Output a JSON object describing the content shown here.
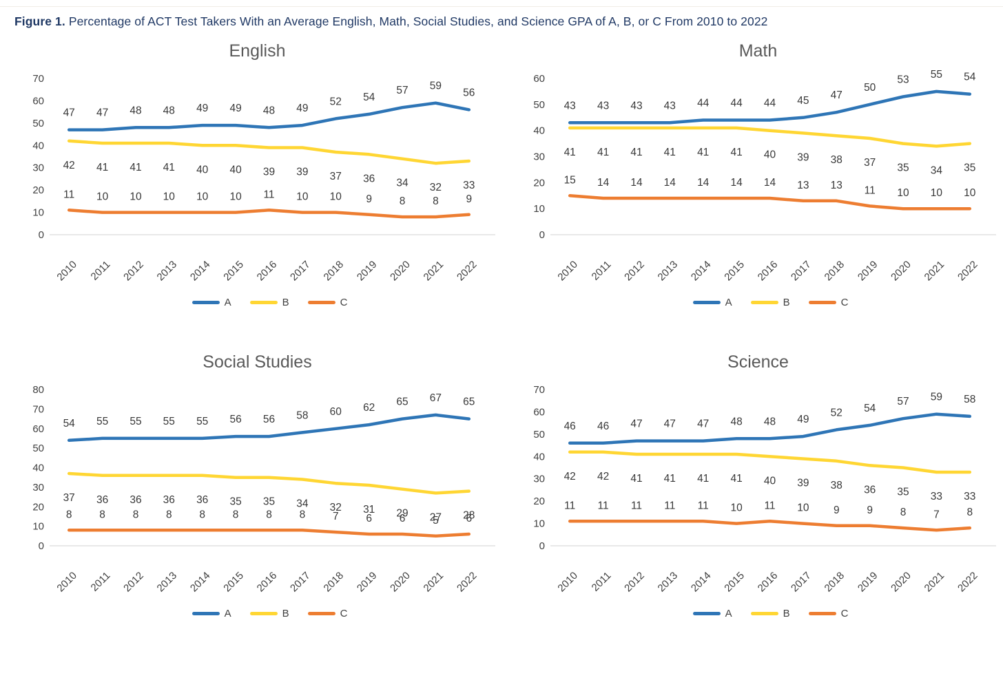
{
  "page": {
    "figure_label": "Figure 1.",
    "figure_caption": "Percentage of ACT Test Takers With an Average English, Math, Social Studies, and Science GPA of A, B, or C From 2010 to 2022"
  },
  "colors": {
    "series_A": "#2E75B6",
    "series_B": "#FFD633",
    "series_C": "#ED7D31",
    "axis_line": "#D9D9D9",
    "tick_text": "#404040",
    "chart_title_text": "#595959",
    "figure_title_text": "#1F3864"
  },
  "chart_data": [
    {
      "type": "line",
      "title": "English",
      "x": [
        "2010",
        "2011",
        "2012",
        "2013",
        "2014",
        "2015",
        "2016",
        "2017",
        "2018",
        "2019",
        "2020",
        "2021",
        "2022"
      ],
      "ylim": [
        0,
        70
      ],
      "ytick_step": 10,
      "grid": false,
      "legend_position": "bottom",
      "data_labels": true,
      "series": [
        {
          "name": "A",
          "color": "#2E75B6",
          "label_position": "above",
          "values": [
            47,
            47,
            48,
            48,
            49,
            49,
            48,
            49,
            52,
            54,
            57,
            59,
            56
          ]
        },
        {
          "name": "B",
          "color": "#FFD633",
          "label_position": "below",
          "values": [
            42,
            41,
            41,
            41,
            40,
            40,
            39,
            39,
            37,
            36,
            34,
            32,
            33
          ]
        },
        {
          "name": "C",
          "color": "#ED7D31",
          "label_position": "above",
          "values": [
            11,
            10,
            10,
            10,
            10,
            10,
            11,
            10,
            10,
            9,
            8,
            8,
            9
          ]
        }
      ]
    },
    {
      "type": "line",
      "title": "Math",
      "x": [
        "2010",
        "2011",
        "2012",
        "2013",
        "2014",
        "2015",
        "2016",
        "2017",
        "2018",
        "2019",
        "2020",
        "2021",
        "2022"
      ],
      "ylim": [
        0,
        60
      ],
      "ytick_step": 10,
      "grid": false,
      "legend_position": "bottom",
      "data_labels": true,
      "series": [
        {
          "name": "A",
          "color": "#2E75B6",
          "label_position": "above",
          "values": [
            43,
            43,
            43,
            43,
            44,
            44,
            44,
            45,
            47,
            50,
            53,
            55,
            54
          ]
        },
        {
          "name": "B",
          "color": "#FFD633",
          "label_position": "below",
          "values": [
            41,
            41,
            41,
            41,
            41,
            41,
            40,
            39,
            38,
            37,
            35,
            34,
            35
          ]
        },
        {
          "name": "C",
          "color": "#ED7D31",
          "label_position": "above",
          "values": [
            15,
            14,
            14,
            14,
            14,
            14,
            14,
            13,
            13,
            11,
            10,
            10,
            10
          ]
        }
      ]
    },
    {
      "type": "line",
      "title": "Social Studies",
      "x": [
        "2010",
        "2011",
        "2012",
        "2013",
        "2014",
        "2015",
        "2016",
        "2017",
        "2018",
        "2019",
        "2020",
        "2021",
        "2022"
      ],
      "ylim": [
        0,
        80
      ],
      "ytick_step": 10,
      "grid": false,
      "legend_position": "bottom",
      "data_labels": true,
      "series": [
        {
          "name": "A",
          "color": "#2E75B6",
          "label_position": "above",
          "values": [
            54,
            55,
            55,
            55,
            55,
            56,
            56,
            58,
            60,
            62,
            65,
            67,
            65
          ]
        },
        {
          "name": "B",
          "color": "#FFD633",
          "label_position": "below",
          "values": [
            37,
            36,
            36,
            36,
            36,
            35,
            35,
            34,
            32,
            31,
            29,
            27,
            28
          ]
        },
        {
          "name": "C",
          "color": "#ED7D31",
          "label_position": "above",
          "values": [
            8,
            8,
            8,
            8,
            8,
            8,
            8,
            8,
            7,
            6,
            6,
            5,
            6
          ]
        }
      ]
    },
    {
      "type": "line",
      "title": "Science",
      "x": [
        "2010",
        "2011",
        "2012",
        "2013",
        "2014",
        "2015",
        "2016",
        "2017",
        "2018",
        "2019",
        "2020",
        "2021",
        "2022"
      ],
      "ylim": [
        0,
        70
      ],
      "ytick_step": 10,
      "grid": false,
      "legend_position": "bottom",
      "data_labels": true,
      "series": [
        {
          "name": "A",
          "color": "#2E75B6",
          "label_position": "above",
          "values": [
            46,
            46,
            47,
            47,
            47,
            48,
            48,
            49,
            52,
            54,
            57,
            59,
            58
          ]
        },
        {
          "name": "B",
          "color": "#FFD633",
          "label_position": "below",
          "values": [
            42,
            42,
            41,
            41,
            41,
            41,
            40,
            39,
            38,
            36,
            35,
            33,
            33
          ]
        },
        {
          "name": "C",
          "color": "#ED7D31",
          "label_position": "above",
          "values": [
            11,
            11,
            11,
            11,
            11,
            10,
            11,
            10,
            9,
            9,
            8,
            7,
            8
          ]
        }
      ]
    }
  ]
}
